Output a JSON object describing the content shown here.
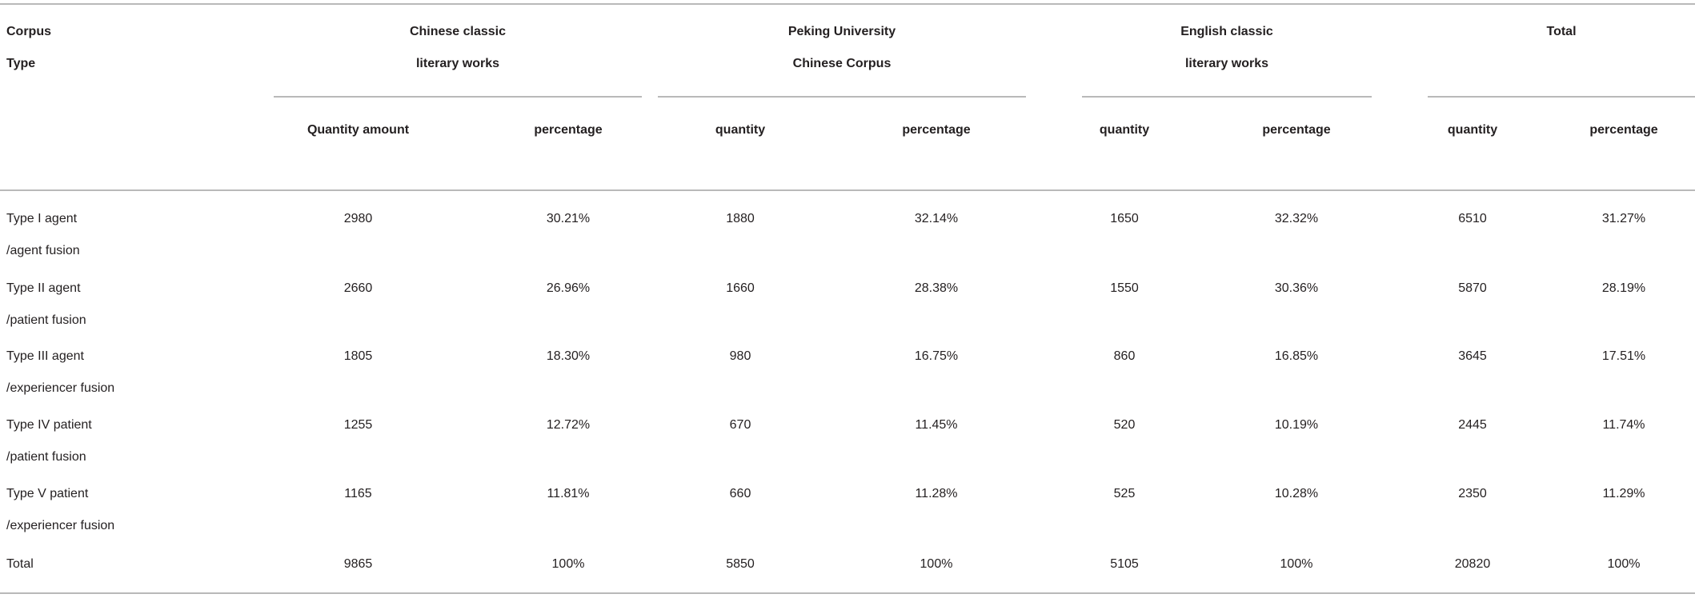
{
  "table": {
    "corner_header": [
      "Corpus",
      "Type"
    ],
    "groups": [
      {
        "title_lines": [
          "Chinese classic",
          "literary works"
        ],
        "sub": [
          "Quantity amount",
          "percentage"
        ]
      },
      {
        "title_lines": [
          "Peking University",
          "Chinese Corpus"
        ],
        "sub": [
          "quantity",
          "percentage"
        ]
      },
      {
        "title_lines": [
          "English classic",
          "literary works"
        ],
        "sub": [
          "quantity",
          "percentage"
        ]
      },
      {
        "title_lines": [
          "Total"
        ],
        "sub": [
          "quantity",
          "percentage"
        ]
      }
    ],
    "rows": [
      {
        "type_lines": [
          "Type I agent",
          "/agent fusion"
        ],
        "values": [
          "2980",
          "30.21%",
          "1880",
          "32.14%",
          "1650",
          "32.32%",
          "6510",
          "31.27%"
        ]
      },
      {
        "type_lines": [
          "Type II agent",
          "/patient fusion"
        ],
        "values": [
          "2660",
          "26.96%",
          "1660",
          "28.38%",
          "1550",
          "30.36%",
          "5870",
          "28.19%"
        ]
      },
      {
        "type_lines": [
          "Type III agent",
          "/experiencer fusion"
        ],
        "values": [
          "1805",
          "18.30%",
          "980",
          "16.75%",
          "860",
          "16.85%",
          "3645",
          "17.51%"
        ]
      },
      {
        "type_lines": [
          "Type IV patient",
          "/patient fusion"
        ],
        "values": [
          "1255",
          "12.72%",
          "670",
          "11.45%",
          "520",
          "10.19%",
          "2445",
          "11.74%"
        ]
      },
      {
        "type_lines": [
          "Type V patient",
          "/experiencer fusion"
        ],
        "values": [
          "1165",
          "11.81%",
          "660",
          "11.28%",
          "525",
          "10.28%",
          "2350",
          "11.29%"
        ]
      },
      {
        "type_lines": [
          "Total"
        ],
        "values": [
          "9865",
          "100%",
          "5850",
          "100%",
          "5105",
          "100%",
          "20820",
          "100%"
        ]
      }
    ]
  }
}
